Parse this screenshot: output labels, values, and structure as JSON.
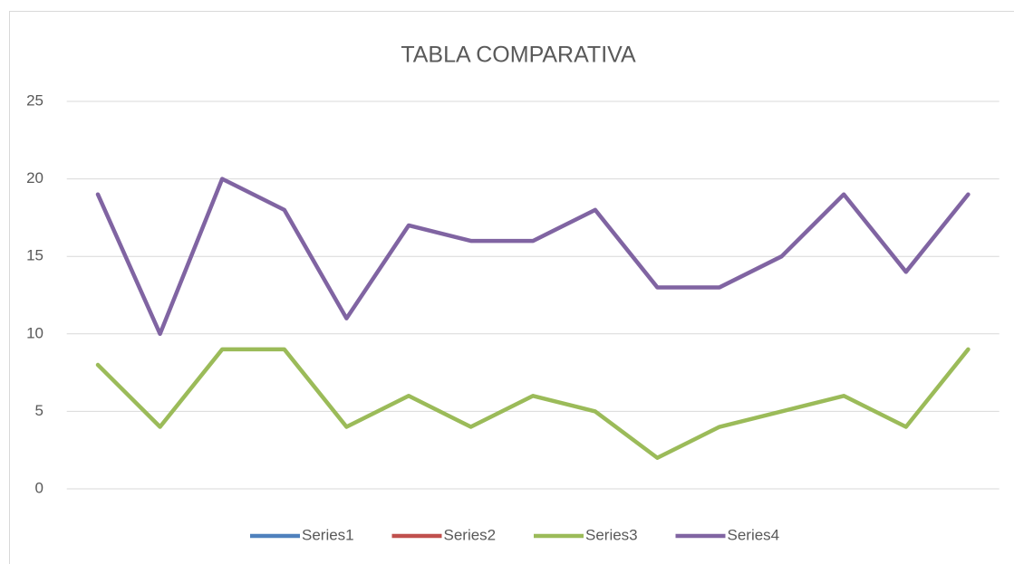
{
  "chart_data": {
    "type": "line",
    "title": "TABLA COMPARATIVA",
    "categories": [
      null,
      null,
      null,
      null,
      null,
      null,
      null,
      null,
      null,
      null,
      null,
      null,
      null,
      null,
      null
    ],
    "series": [
      {
        "name": "Series1",
        "color": "#4f81bd",
        "values": [
          null,
          null,
          null,
          null,
          null,
          null,
          null,
          null,
          null,
          null,
          null,
          null,
          null,
          null,
          null
        ]
      },
      {
        "name": "Series2",
        "color": "#c0504d",
        "values": [
          null,
          null,
          null,
          null,
          null,
          null,
          null,
          null,
          null,
          null,
          null,
          null,
          null,
          null,
          null
        ]
      },
      {
        "name": "Series3",
        "color": "#9bbb59",
        "values": [
          8,
          4,
          9,
          9,
          4,
          6,
          4,
          6,
          5,
          2,
          4,
          5,
          6,
          4,
          9
        ]
      },
      {
        "name": "Series4",
        "color": "#8064a2",
        "values": [
          19,
          10,
          20,
          18,
          11,
          17,
          16,
          16,
          18,
          13,
          13,
          15,
          19,
          14,
          19
        ]
      }
    ],
    "ylim": [
      0,
      25
    ],
    "yticks": [
      0,
      5,
      10,
      15,
      20,
      25
    ],
    "grid": true,
    "legend": "bottom"
  }
}
